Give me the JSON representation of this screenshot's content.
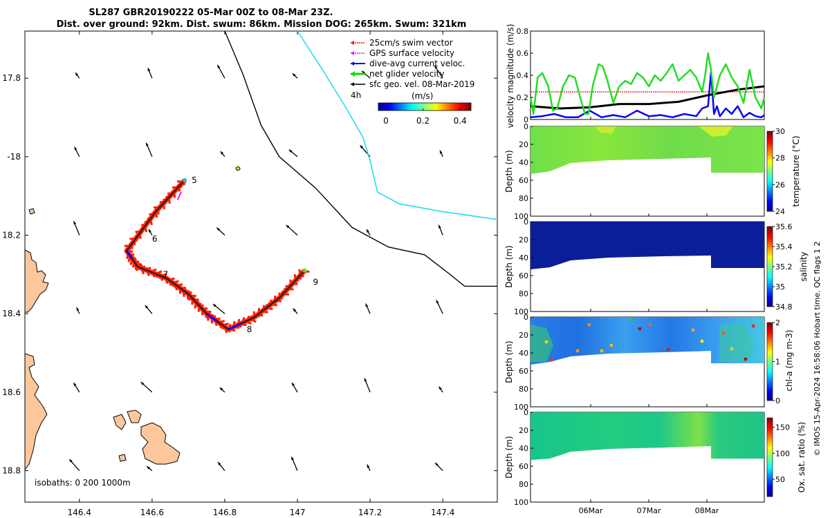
{
  "chart_data": {
    "type": "map",
    "title_line1": "SL287 GBR20190222 05-Mar 00Z to 08-Mar 23Z.",
    "title_line2": "Dist. over ground: 92km. Dist. swum: 86km. Mission DOG: 265km. Swum: 321km",
    "map": {
      "xlim": [
        146.25,
        147.55
      ],
      "ylim": [
        -18.88,
        -17.68
      ],
      "x_ticks": [
        146.4,
        146.6,
        146.8,
        147,
        147.2,
        147.4
      ],
      "x_tick_labels": [
        "146.4",
        "146.6",
        "146.8",
        "147",
        "147.2",
        "147.4"
      ],
      "y_ticks": [
        -17.8,
        -18.0,
        -18.2,
        -18.4,
        -18.6,
        -18.8
      ],
      "y_tick_labels": [
        "17.8",
        "-18",
        "18.2",
        "18.4",
        "18.6",
        "18.8"
      ],
      "legend": [
        {
          "label": "25cm/s swim vector",
          "color": "#ff0000"
        },
        {
          "label": "GPS surface velocity",
          "color": "#ff00ff"
        },
        {
          "label": "dive-avg current veloc.",
          "color": "#0000ff"
        },
        {
          "label": "net glider velocity",
          "color": "#00dd00"
        },
        {
          "label": "sfc geo. vel. 08-Mar-2019",
          "color": "#000000"
        }
      ],
      "scale_label": "4h",
      "colorbar_title": "(m/s)",
      "colorbar_ticks": [
        0,
        0.2,
        0.4
      ],
      "colorbar_tick_labels": [
        "0",
        "0.2",
        "0.4"
      ],
      "isobath_label": "isobaths: 0   200  1000m",
      "waypoints": [
        {
          "label": "5",
          "lon": 146.69,
          "lat": -18.06
        },
        {
          "label": "6",
          "lon": 146.6,
          "lat": -18.21
        },
        {
          "label": "7",
          "lon": 146.63,
          "lat": -18.3
        },
        {
          "label": "8",
          "lon": 146.83,
          "lat": -18.44
        },
        {
          "label": "9",
          "lon": 147.02,
          "lat": -18.32
        }
      ],
      "track": [
        [
          146.69,
          -18.06
        ],
        [
          146.61,
          -18.14
        ],
        [
          146.53,
          -18.24
        ],
        [
          146.56,
          -18.28
        ],
        [
          146.64,
          -18.31
        ],
        [
          146.7,
          -18.35
        ],
        [
          146.75,
          -18.4
        ],
        [
          146.81,
          -18.44
        ],
        [
          146.88,
          -18.41
        ],
        [
          146.95,
          -18.36
        ],
        [
          147.02,
          -18.29
        ]
      ],
      "isobath_200m": [
        [
          146.8,
          -17.68
        ],
        [
          146.85,
          -17.79
        ],
        [
          146.9,
          -17.92
        ],
        [
          146.95,
          -18.0
        ],
        [
          147.05,
          -18.08
        ],
        [
          147.15,
          -18.18
        ],
        [
          147.25,
          -18.23
        ],
        [
          147.35,
          -18.25
        ],
        [
          147.42,
          -18.3
        ],
        [
          147.46,
          -18.33
        ],
        [
          147.55,
          -18.33
        ]
      ],
      "isobath_1000m": [
        [
          147.0,
          -17.68
        ],
        [
          147.07,
          -17.78
        ],
        [
          147.13,
          -17.87
        ],
        [
          147.18,
          -17.95
        ],
        [
          147.2,
          -18.01
        ],
        [
          147.22,
          -18.09
        ],
        [
          147.28,
          -18.12
        ],
        [
          147.4,
          -18.14
        ],
        [
          147.55,
          -18.16
        ]
      ]
    },
    "velocity_panel": {
      "ylabel": "velocity magnitude (m/s)",
      "ylim": [
        0,
        0.8
      ],
      "y_ticks": [
        0,
        0.2,
        0.4,
        0.6,
        0.8
      ],
      "y_tick_labels": [
        "0",
        "0.2",
        "0.4",
        "0.6",
        "0.8"
      ],
      "x_days": [
        5,
        8.95
      ],
      "series": [
        {
          "name": "net glider velocity",
          "color": "#22dd22",
          "x": [
            5.0,
            5.05,
            5.12,
            5.2,
            5.3,
            5.38,
            5.45,
            5.55,
            5.65,
            5.75,
            5.85,
            5.92,
            5.98,
            6.05,
            6.15,
            6.22,
            6.3,
            6.4,
            6.5,
            6.6,
            6.7,
            6.8,
            6.9,
            7.0,
            7.1,
            7.2,
            7.3,
            7.4,
            7.5,
            7.6,
            7.7,
            7.8,
            7.9,
            7.95,
            8.0,
            8.05,
            8.1,
            8.2,
            8.3,
            8.4,
            8.5,
            8.6,
            8.7,
            8.8,
            8.9,
            8.95
          ],
          "values": [
            0.2,
            0.05,
            0.38,
            0.42,
            0.3,
            0.08,
            0.1,
            0.3,
            0.4,
            0.38,
            0.18,
            0.05,
            0.05,
            0.3,
            0.5,
            0.48,
            0.35,
            0.15,
            0.3,
            0.35,
            0.32,
            0.42,
            0.38,
            0.3,
            0.4,
            0.35,
            0.42,
            0.5,
            0.35,
            0.4,
            0.45,
            0.38,
            0.25,
            0.4,
            0.6,
            0.45,
            0.2,
            0.4,
            0.5,
            0.38,
            0.3,
            0.15,
            0.45,
            0.2,
            0.1,
            0.2
          ]
        },
        {
          "name": "sfc geo. vel.",
          "color": "#000000",
          "x": [
            5.0,
            5.5,
            6.0,
            6.5,
            7.0,
            7.5,
            8.0,
            8.5,
            8.95
          ],
          "values": [
            0.12,
            0.1,
            0.11,
            0.14,
            0.14,
            0.16,
            0.22,
            0.27,
            0.3
          ]
        },
        {
          "name": "dive-avg current veloc.",
          "color": "#0000ff",
          "x": [
            5.0,
            5.2,
            5.4,
            5.6,
            5.8,
            6.0,
            6.2,
            6.4,
            6.6,
            6.8,
            7.0,
            7.2,
            7.4,
            7.6,
            7.8,
            7.9,
            8.0,
            8.05,
            8.1,
            8.15,
            8.2,
            8.3,
            8.4,
            8.5,
            8.6,
            8.7,
            8.8,
            8.9,
            8.95
          ],
          "values": [
            0.02,
            0.03,
            0.05,
            0.02,
            0.02,
            0.08,
            0.02,
            0.04,
            0.02,
            0.08,
            0.03,
            0.04,
            0.02,
            0.05,
            0.03,
            0.1,
            0.12,
            0.43,
            0.05,
            0.12,
            0.03,
            0.1,
            0.05,
            0.12,
            0.02,
            0.06,
            0.03,
            0.02,
            0.04
          ]
        },
        {
          "name": "25cm/s swim vector",
          "color": "#ff0000",
          "x": [
            5.0,
            8.95
          ],
          "values": [
            0.25,
            0.25
          ]
        }
      ]
    },
    "section_panels": [
      {
        "name": "temperature",
        "colorbar_label": "temperature (°C)",
        "cticks": [
          "24",
          "26",
          "28",
          "30"
        ],
        "ylabel": "Depth (m)"
      },
      {
        "name": "salinity",
        "colorbar_label": "salinity",
        "cticks": [
          "34.8",
          "35",
          "35.2",
          "35.4",
          "35.6"
        ],
        "ylabel": "Depth (m)"
      },
      {
        "name": "chl-a",
        "colorbar_label": "chl-a (mg m-3)",
        "cticks": [
          "0",
          "1",
          "2"
        ],
        "ylabel": "Depth (m)"
      },
      {
        "name": "oxsat",
        "colorbar_label": "Ox. sat. ratio (%)",
        "cticks": [
          "50",
          "100",
          "150"
        ],
        "ylabel": "Depth (m)"
      }
    ],
    "depth_ticks": [
      "0",
      "20",
      "40",
      "60",
      "80",
      "100"
    ],
    "time_ticks": [
      "06Mar",
      "07Mar",
      "08Mar"
    ],
    "credit": "© IMOS 15-Apr-2024 16:58:06 Hobart time. QC flags 1  2"
  }
}
